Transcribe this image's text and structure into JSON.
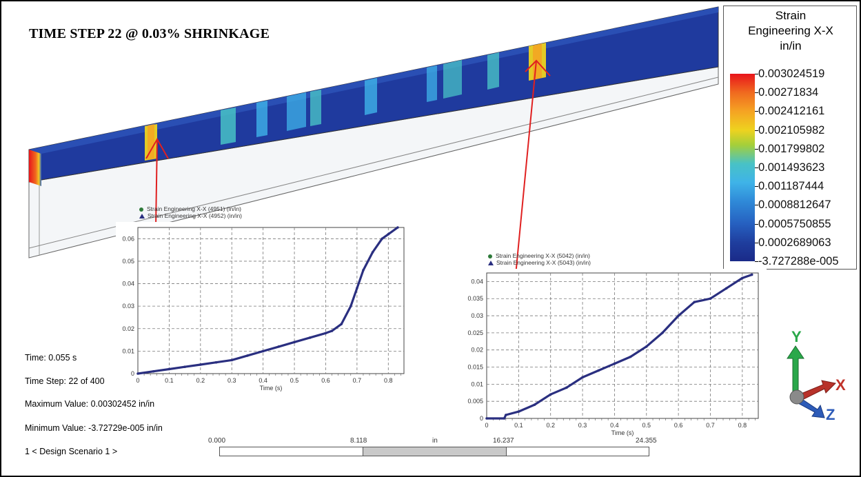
{
  "title": "TIME STEP 22 @ 0.03% SHRINKAGE",
  "legend": {
    "title_line1": "Strain",
    "title_line2": "Engineering X-X",
    "title_line3": "in/in",
    "values": [
      "0.003024519",
      "0.00271834",
      "0.002412161",
      "0.002105982",
      "0.001799802",
      "0.001493623",
      "0.001187444",
      "0.0008812647",
      "0.0005750855",
      "0.0002689063",
      "-3.727288e-005"
    ],
    "colors": [
      "#e8151b",
      "#f5a323",
      "#eed21f",
      "#48c2c6",
      "#2660c0",
      "#1a2a88"
    ]
  },
  "info": {
    "time": "Time: 0.055 s",
    "time_step": "Time Step:  22 of 400",
    "max_value": "Maximum Value: 0.00302452 in/in",
    "min_value": "Minimum Value: -3.72729e-005 in/in",
    "scenario": "1 < Design Scenario 1 >"
  },
  "scale": {
    "labels": [
      "0.000",
      "8.118",
      "16.237",
      "24.355"
    ],
    "unit": "in"
  },
  "axes": {
    "x_label": "X",
    "y_label": "Y",
    "z_label": "Z"
  },
  "chart_data": [
    {
      "type": "scatter",
      "title": "",
      "series": [
        {
          "name": "Strain Engineering X-X (4951) (in/in)",
          "marker": "circle",
          "color": "#2e7a3a"
        },
        {
          "name": "Strain Engineering X-X (4952) (in/in)",
          "marker": "triangle",
          "color": "#2a2f80",
          "x": [
            0,
            0.05,
            0.1,
            0.15,
            0.2,
            0.25,
            0.3,
            0.35,
            0.4,
            0.45,
            0.5,
            0.55,
            0.6,
            0.62,
            0.65,
            0.68,
            0.7,
            0.72,
            0.75,
            0.78,
            0.8,
            0.83
          ],
          "y": [
            0,
            0.001,
            0.002,
            0.003,
            0.004,
            0.005,
            0.006,
            0.008,
            0.01,
            0.012,
            0.014,
            0.016,
            0.018,
            0.019,
            0.022,
            0.03,
            0.038,
            0.046,
            0.054,
            0.06,
            0.062,
            0.065
          ]
        }
      ],
      "xlabel": "Time (s)",
      "ylabel": "",
      "xlim": [
        0,
        0.85
      ],
      "ylim": [
        0,
        0.065
      ],
      "xticks": [
        "0",
        "0.1",
        "0.2",
        "0.3",
        "0.4",
        "0.5",
        "0.6",
        "0.7",
        "0.8"
      ],
      "yticks": [
        "0",
        "0.01",
        "0.02",
        "0.03",
        "0.04",
        "0.05",
        "0.06"
      ],
      "grid": true,
      "legend": "top-left"
    },
    {
      "type": "scatter",
      "title": "",
      "series": [
        {
          "name": "Strain Engineering X-X (5042) (in/in)",
          "marker": "circle",
          "color": "#2e7a3a"
        },
        {
          "name": "Strain Engineering X-X (5043) (in/in)",
          "marker": "triangle",
          "color": "#2a2f80",
          "x": [
            0,
            0.055,
            0.06,
            0.1,
            0.15,
            0.2,
            0.25,
            0.3,
            0.35,
            0.4,
            0.45,
            0.5,
            0.55,
            0.6,
            0.65,
            0.7,
            0.75,
            0.8,
            0.83
          ],
          "y": [
            0,
            0,
            0.001,
            0.002,
            0.004,
            0.007,
            0.009,
            0.012,
            0.014,
            0.016,
            0.018,
            0.021,
            0.025,
            0.03,
            0.034,
            0.035,
            0.038,
            0.041,
            0.042
          ]
        }
      ],
      "xlabel": "Time (s)",
      "ylabel": "",
      "xlim": [
        0,
        0.85
      ],
      "ylim": [
        0,
        0.0425
      ],
      "xticks": [
        "0",
        "0.1",
        "0.2",
        "0.3",
        "0.4",
        "0.5",
        "0.6",
        "0.7",
        "0.8"
      ],
      "yticks": [
        "0",
        "0.005",
        "0.01",
        "0.015",
        "0.02",
        "0.025",
        "0.03",
        "0.035",
        "0.04"
      ],
      "grid": true,
      "legend": "top-left"
    }
  ]
}
